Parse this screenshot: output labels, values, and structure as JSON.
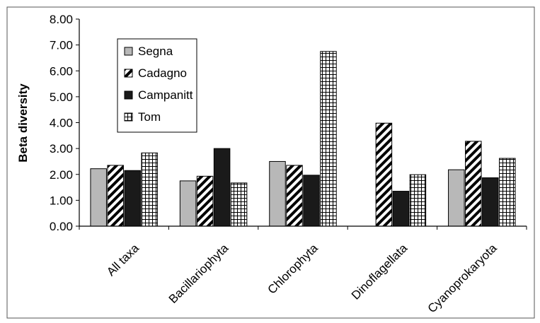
{
  "chart_data": {
    "type": "bar",
    "title": "",
    "xlabel": "",
    "ylabel": "Beta diversity",
    "ylim": [
      0,
      8
    ],
    "yticks": [
      "0.00",
      "1.00",
      "2.00",
      "3.00",
      "4.00",
      "5.00",
      "6.00",
      "7.00",
      "8.00"
    ],
    "grid": false,
    "legend_position": "top-left",
    "categories": [
      "All taxa",
      "Bacillariophyta",
      "Chlorophyta",
      "Dinoflagellata",
      "Cyanoprokaryota"
    ],
    "series": [
      {
        "name": "Segna",
        "pattern": "solid-gray",
        "color": "#b8b8b8",
        "values": [
          2.22,
          1.75,
          2.5,
          0,
          2.18
        ]
      },
      {
        "name": "Cadagno",
        "pattern": "diagonal-hatch",
        "color": "#000000",
        "values": [
          2.35,
          1.93,
          2.35,
          3.98,
          3.28
        ]
      },
      {
        "name": "Campanitt",
        "pattern": "solid-black",
        "color": "#1a1a1a",
        "values": [
          2.15,
          3.0,
          1.97,
          1.35,
          1.87
        ]
      },
      {
        "name": "Tom",
        "pattern": "grid-hatch",
        "color": "#000000",
        "values": [
          2.83,
          1.67,
          6.75,
          1.99,
          2.62
        ]
      }
    ]
  }
}
